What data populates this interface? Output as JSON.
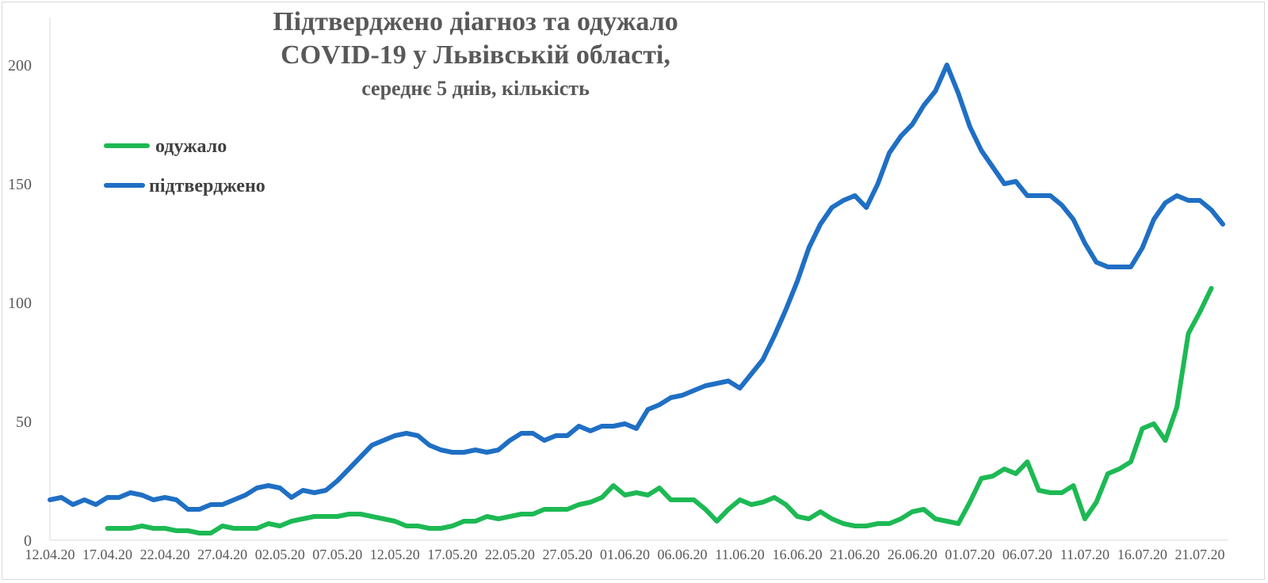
{
  "chart_data": {
    "type": "line",
    "title": "Підтверджено діагноз та одужало",
    "title_line2": "COVID-19 у Львівській області,",
    "subtitle": "середнє 5 днів, кількість",
    "xlabel": "",
    "ylabel": "",
    "ylim": [
      0,
      200
    ],
    "yticks": [
      "0",
      "50",
      "100",
      "150",
      "200"
    ],
    "legend_position": "upper-left",
    "grid": false,
    "x_tick_labels": [
      "12.04.20",
      "17.04.20",
      "22.04.20",
      "27.04.20",
      "02.05.20",
      "07.05.20",
      "12.05.20",
      "17.05.20",
      "22.05.20",
      "27.05.20",
      "01.06.20",
      "06.06.20",
      "11.06.20",
      "16.06.20",
      "21.06.20",
      "26.06.20",
      "01.07.20",
      "06.07.20",
      "11.07.20",
      "16.07.20",
      "21.07.20"
    ],
    "series": [
      {
        "name": "одужало",
        "color": "#1db954",
        "start_index": 5,
        "values": [
          5,
          5,
          5,
          6,
          5,
          5,
          4,
          4,
          3,
          3,
          6,
          5,
          5,
          5,
          7,
          6,
          8,
          9,
          10,
          10,
          10,
          11,
          11,
          10,
          9,
          8,
          6,
          6,
          5,
          5,
          6,
          8,
          8,
          10,
          9,
          10,
          11,
          11,
          13,
          13,
          13,
          15,
          16,
          18,
          23,
          19,
          20,
          19,
          22,
          17,
          17,
          17,
          13,
          8,
          13,
          17,
          15,
          16,
          18,
          15,
          10,
          9,
          12,
          9,
          7,
          6,
          6,
          7,
          7,
          9,
          12,
          13,
          9,
          8,
          7,
          16,
          26,
          27,
          30,
          28,
          33,
          21,
          20,
          20,
          23,
          9,
          16,
          28,
          30,
          33,
          47,
          49,
          42,
          56,
          87,
          96,
          106
        ]
      },
      {
        "name": "підтверджено",
        "color": "#1f6fc4",
        "start_index": 0,
        "values": [
          17,
          18,
          15,
          17,
          15,
          18,
          18,
          20,
          19,
          17,
          18,
          17,
          13,
          13,
          15,
          15,
          17,
          19,
          22,
          23,
          22,
          18,
          21,
          20,
          21,
          25,
          30,
          35,
          40,
          42,
          44,
          45,
          44,
          40,
          38,
          37,
          37,
          38,
          37,
          38,
          42,
          45,
          45,
          42,
          44,
          44,
          48,
          46,
          48,
          48,
          49,
          47,
          55,
          57,
          60,
          61,
          63,
          65,
          66,
          67,
          64,
          70,
          76,
          86,
          97,
          109,
          123,
          133,
          140,
          143,
          145,
          140,
          150,
          163,
          170,
          175,
          183,
          189,
          200,
          188,
          174,
          164,
          157,
          150,
          151,
          145,
          145,
          145,
          141,
          135,
          125,
          117,
          115,
          115,
          115,
          123,
          135,
          142,
          145,
          143,
          143,
          139,
          133
        ]
      }
    ]
  }
}
